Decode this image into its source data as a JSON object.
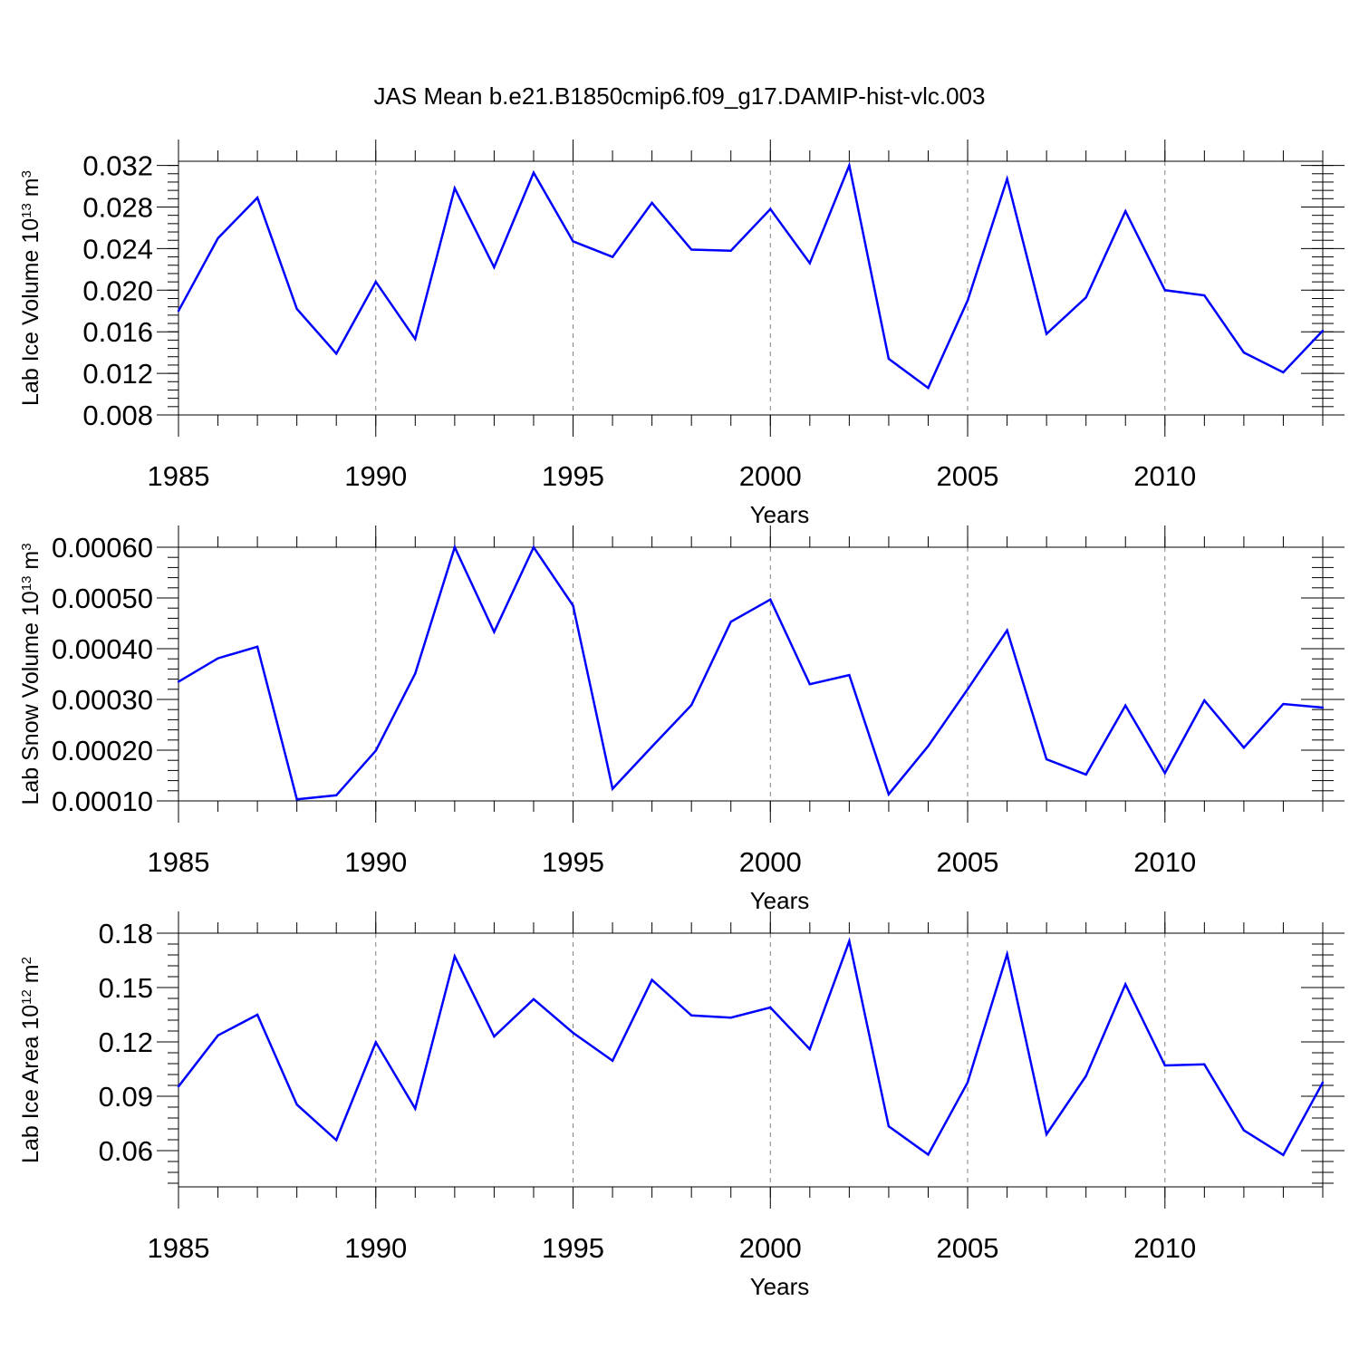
{
  "figure": {
    "title": "JAS Mean b.e21.B1850cmip6.f09_g17.DAMIP-hist-vlc.003"
  },
  "colors": {
    "series": "#0000ff",
    "axis": "#000000",
    "grid": "#808080"
  },
  "chart_data": [
    {
      "type": "line",
      "title": "",
      "xlabel": "Years",
      "ylabel": "Lab Ice Volume 10",
      "ylabel_exp": "13",
      "ylabel_unit": " m",
      "ylabel_unit_exp": "3",
      "xlim": [
        1985,
        2014
      ],
      "ylim": [
        0.008,
        0.0324
      ],
      "xticks": [
        1985,
        1990,
        1995,
        2000,
        2005,
        2010
      ],
      "xtick_labels": [
        "1985",
        "1990",
        "1995",
        "2000",
        "2005",
        "2010"
      ],
      "yticks": [
        0.008,
        0.012,
        0.016,
        0.02,
        0.024,
        0.028,
        0.032
      ],
      "ytick_labels": [
        "0.008",
        "0.012",
        "0.016",
        "0.020",
        "0.024",
        "0.028",
        "0.032"
      ],
      "grid": "x-dashed",
      "x": [
        1985,
        1986,
        1987,
        1988,
        1989,
        1990,
        1991,
        1992,
        1993,
        1994,
        1995,
        1996,
        1997,
        1998,
        1999,
        2000,
        2001,
        2002,
        2003,
        2004,
        2005,
        2006,
        2007,
        2008,
        2009,
        2010,
        2011,
        2012,
        2013,
        2014
      ],
      "series": [
        {
          "name": "Lab Ice Volume",
          "values": [
            0.018,
            0.025,
            0.0289,
            0.0182,
            0.0139,
            0.0208,
            0.0153,
            0.0298,
            0.0222,
            0.0313,
            0.0247,
            0.0232,
            0.0284,
            0.0239,
            0.0238,
            0.0278,
            0.0226,
            0.032,
            0.0134,
            0.0106,
            0.019,
            0.0307,
            0.0158,
            0.0193,
            0.0276,
            0.02,
            0.0195,
            0.014,
            0.0121,
            0.0161
          ]
        }
      ]
    },
    {
      "type": "line",
      "title": "",
      "xlabel": "Years",
      "ylabel": "Lab Snow Volume 10",
      "ylabel_exp": "13",
      "ylabel_unit": " m",
      "ylabel_unit_exp": "3",
      "xlim": [
        1985,
        2014
      ],
      "ylim": [
        0.0001,
        0.0006
      ],
      "xticks": [
        1985,
        1990,
        1995,
        2000,
        2005,
        2010
      ],
      "xtick_labels": [
        "1985",
        "1990",
        "1995",
        "2000",
        "2005",
        "2010"
      ],
      "yticks": [
        0.0001,
        0.0002,
        0.0003,
        0.0004,
        0.0005,
        0.0006
      ],
      "ytick_labels": [
        "0.00010",
        "0.00020",
        "0.00030",
        "0.00040",
        "0.00050",
        "0.00060"
      ],
      "grid": "x-dashed",
      "x": [
        1985,
        1986,
        1987,
        1988,
        1989,
        1990,
        1991,
        1992,
        1993,
        1994,
        1995,
        1996,
        1997,
        1998,
        1999,
        2000,
        2001,
        2002,
        2003,
        2004,
        2005,
        2006,
        2007,
        2008,
        2009,
        2010,
        2011,
        2012,
        2013,
        2014
      ],
      "series": [
        {
          "name": "Lab Snow Volume",
          "values": [
            0.000335,
            0.000381,
            0.000404,
            0.000103,
            0.000111,
            0.000199,
            0.000351,
            0.0006,
            0.000433,
            0.0006,
            0.000485,
            0.000124,
            0.000207,
            0.000289,
            0.000453,
            0.000497,
            0.00033,
            0.000348,
            0.000113,
            0.000208,
            0.00032,
            0.000436,
            0.000182,
            0.000152,
            0.000288,
            0.000155,
            0.000298,
            0.000205,
            0.000291,
            0.000284
          ]
        }
      ]
    },
    {
      "type": "line",
      "title": "",
      "xlabel": "Years",
      "ylabel": "Lab Ice Area 10",
      "ylabel_exp": "12",
      "ylabel_unit": " m",
      "ylabel_unit_exp": "2",
      "xlim": [
        1985,
        2014
      ],
      "ylim": [
        0.04,
        0.18
      ],
      "xticks": [
        1985,
        1990,
        1995,
        2000,
        2005,
        2010
      ],
      "xtick_labels": [
        "1985",
        "1990",
        "1995",
        "2000",
        "2005",
        "2010"
      ],
      "yticks": [
        0.06,
        0.09,
        0.12,
        0.15,
        0.18
      ],
      "ytick_labels": [
        "0.06",
        "0.09",
        "0.12",
        "0.15",
        "0.18"
      ],
      "grid": "x-dashed",
      "x": [
        1985,
        1986,
        1987,
        1988,
        1989,
        1990,
        1991,
        1992,
        1993,
        1994,
        1995,
        1996,
        1997,
        1998,
        1999,
        2000,
        2001,
        2002,
        2003,
        2004,
        2005,
        2006,
        2007,
        2008,
        2009,
        2010,
        2011,
        2012,
        2013,
        2014
      ],
      "series": [
        {
          "name": "Lab Ice Area",
          "values": [
            0.0954,
            0.1236,
            0.135,
            0.0854,
            0.0658,
            0.1198,
            0.0832,
            0.1672,
            0.123,
            0.1436,
            0.125,
            0.1096,
            0.1542,
            0.1346,
            0.1334,
            0.139,
            0.116,
            0.1756,
            0.0734,
            0.0578,
            0.0976,
            0.1684,
            0.069,
            0.1012,
            0.1518,
            0.107,
            0.1076,
            0.0712,
            0.0576,
            0.0976
          ]
        }
      ]
    }
  ]
}
